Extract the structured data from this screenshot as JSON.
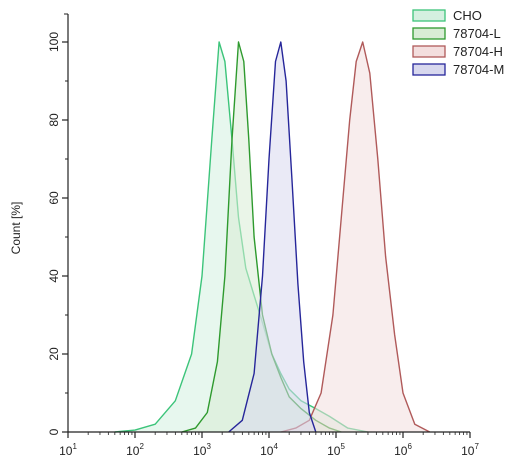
{
  "chart_data": {
    "type": "area",
    "title": "",
    "xlabel": "",
    "ylabel": "Count [%]",
    "xscale": "log",
    "xlim": [
      10,
      10000000
    ],
    "ylim": [
      0,
      105
    ],
    "x_ticks": [
      {
        "base": "10",
        "exp": "1",
        "value": 10
      },
      {
        "base": "10",
        "exp": "2",
        "value": 100
      },
      {
        "base": "10",
        "exp": "3",
        "value": 1000
      },
      {
        "base": "10",
        "exp": "4",
        "value": 10000
      },
      {
        "base": "10",
        "exp": "5",
        "value": 100000
      },
      {
        "base": "10",
        "exp": "6",
        "value": 1000000
      },
      {
        "base": "10",
        "exp": "7",
        "value": 10000000
      }
    ],
    "y_ticks": [
      "0",
      "20",
      "40",
      "60",
      "80",
      "100"
    ],
    "grid": false,
    "legend_position": "top-right",
    "series": [
      {
        "name": "CHO",
        "stroke": "#3cc47a",
        "fill": "#d4f0e0",
        "x": [
          50,
          100,
          200,
          400,
          700,
          1000,
          1400,
          1800,
          2200,
          2800,
          3500,
          4500,
          6000,
          8000,
          11000,
          15000,
          20000,
          30000,
          50000,
          80000,
          150000,
          300000
        ],
        "y": [
          0,
          0.5,
          2,
          8,
          20,
          40,
          75,
          100,
          95,
          75,
          55,
          42,
          35,
          28,
          20,
          15,
          11,
          8,
          6,
          4,
          1,
          0
        ]
      },
      {
        "name": "78704-L",
        "stroke": "#2e9a2e",
        "fill": "#d8ecd5",
        "x": [
          500,
          800,
          1200,
          1700,
          2200,
          2800,
          3500,
          4200,
          5000,
          6000,
          8000,
          11000,
          15000,
          20000,
          30000,
          50000,
          80000,
          120000
        ],
        "y": [
          0,
          1,
          5,
          18,
          40,
          75,
          100,
          95,
          75,
          50,
          30,
          20,
          14,
          9,
          6,
          3,
          1,
          0
        ]
      },
      {
        "name": "78704-H",
        "stroke": "#b05a5a",
        "fill": "#f3dede",
        "x": [
          15000,
          25000,
          40000,
          60000,
          90000,
          120000,
          160000,
          200000,
          250000,
          320000,
          420000,
          550000,
          750000,
          1000000,
          1500000,
          2500000
        ],
        "y": [
          0,
          1,
          3,
          10,
          30,
          55,
          80,
          95,
          100,
          92,
          70,
          45,
          25,
          10,
          2,
          0
        ]
      },
      {
        "name": "78704-M",
        "stroke": "#26269a",
        "fill": "#d8d8ee",
        "x": [
          2500,
          4000,
          6000,
          8000,
          10000,
          12500,
          15000,
          18000,
          22000,
          27000,
          33000,
          40000,
          50000
        ],
        "y": [
          0,
          3,
          15,
          40,
          70,
          95,
          100,
          90,
          65,
          38,
          18,
          5,
          0
        ]
      }
    ]
  }
}
